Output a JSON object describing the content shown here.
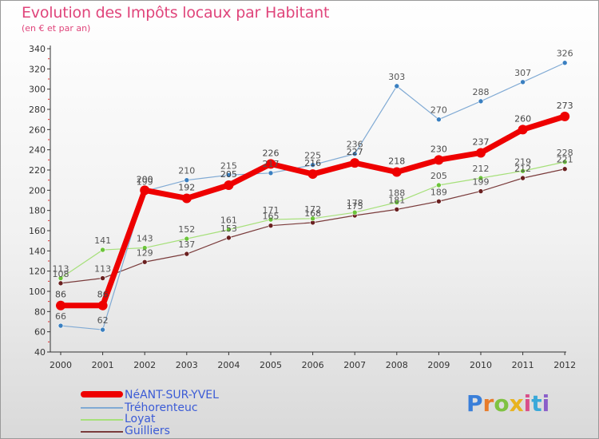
{
  "title": "Evolution des Impôts locaux par Habitant",
  "subtitle": "(en € et par an)",
  "logo_text": "Proxiti",
  "chart_data": {
    "type": "line",
    "title": "Evolution des Impôts locaux par Habitant",
    "subtitle": "(en € et par an)",
    "xlabel": "",
    "ylabel": "",
    "ylim": [
      40,
      340
    ],
    "yticks": [
      40,
      60,
      80,
      100,
      120,
      140,
      160,
      180,
      200,
      220,
      240,
      260,
      280,
      300,
      320,
      340
    ],
    "x": [
      "2000",
      "2001",
      "2002",
      "2003",
      "2004",
      "2005",
      "2006",
      "2007",
      "2008",
      "2009",
      "2010",
      "2011",
      "2012"
    ],
    "grid": false,
    "legend_position": "bottom-left",
    "series": [
      {
        "name": "NéANT-SUR-YVEL",
        "color": "#ee0000",
        "point_color": "#ee0000",
        "label_color": "#444444",
        "width": 7,
        "marker": 6,
        "values": [
          86,
          86,
          200,
          192,
          205,
          226,
          216,
          227,
          218,
          230,
          237,
          260,
          273
        ],
        "labels": [
          "86",
          "86",
          "200",
          "192",
          "205",
          "226",
          "216",
          "227",
          "218",
          "230",
          "237",
          "260",
          "273"
        ]
      },
      {
        "name": "Tréhorenteuc",
        "color": "#80aad4",
        "point_color": "#3a7fc0",
        "label_color": "#555555",
        "width": 1.2,
        "marker": 3,
        "values": [
          66,
          62,
          199,
          210,
          215,
          217,
          225,
          236,
          303,
          270,
          288,
          307,
          326
        ],
        "labels": [
          "66",
          "62",
          "199",
          "210",
          "215",
          "217",
          "225",
          "236",
          "303",
          "270",
          "288",
          "307",
          "326"
        ]
      },
      {
        "name": "Loyat",
        "color": "#a6e07a",
        "point_color": "#6cc43a",
        "label_color": "#555555",
        "width": 1.2,
        "marker": 3,
        "values": [
          113,
          141,
          143,
          152,
          161,
          171,
          172,
          178,
          188,
          205,
          212,
          219,
          228
        ],
        "labels": [
          "113",
          "141",
          "143",
          "152",
          "161",
          "171",
          "172",
          "178",
          "188",
          "205",
          "212",
          "219",
          "228"
        ]
      },
      {
        "name": "Guilliers",
        "color": "#7a3b3b",
        "point_color": "#6a2020",
        "label_color": "#555555",
        "width": 1.2,
        "marker": 3,
        "values": [
          108,
          113,
          129,
          137,
          153,
          165,
          168,
          175,
          181,
          189,
          199,
          212,
          221
        ],
        "labels": [
          "108",
          "113",
          "129",
          "137",
          "153",
          "165",
          "168",
          "175",
          "181",
          "189",
          "199",
          "212",
          "221"
        ]
      }
    ]
  }
}
